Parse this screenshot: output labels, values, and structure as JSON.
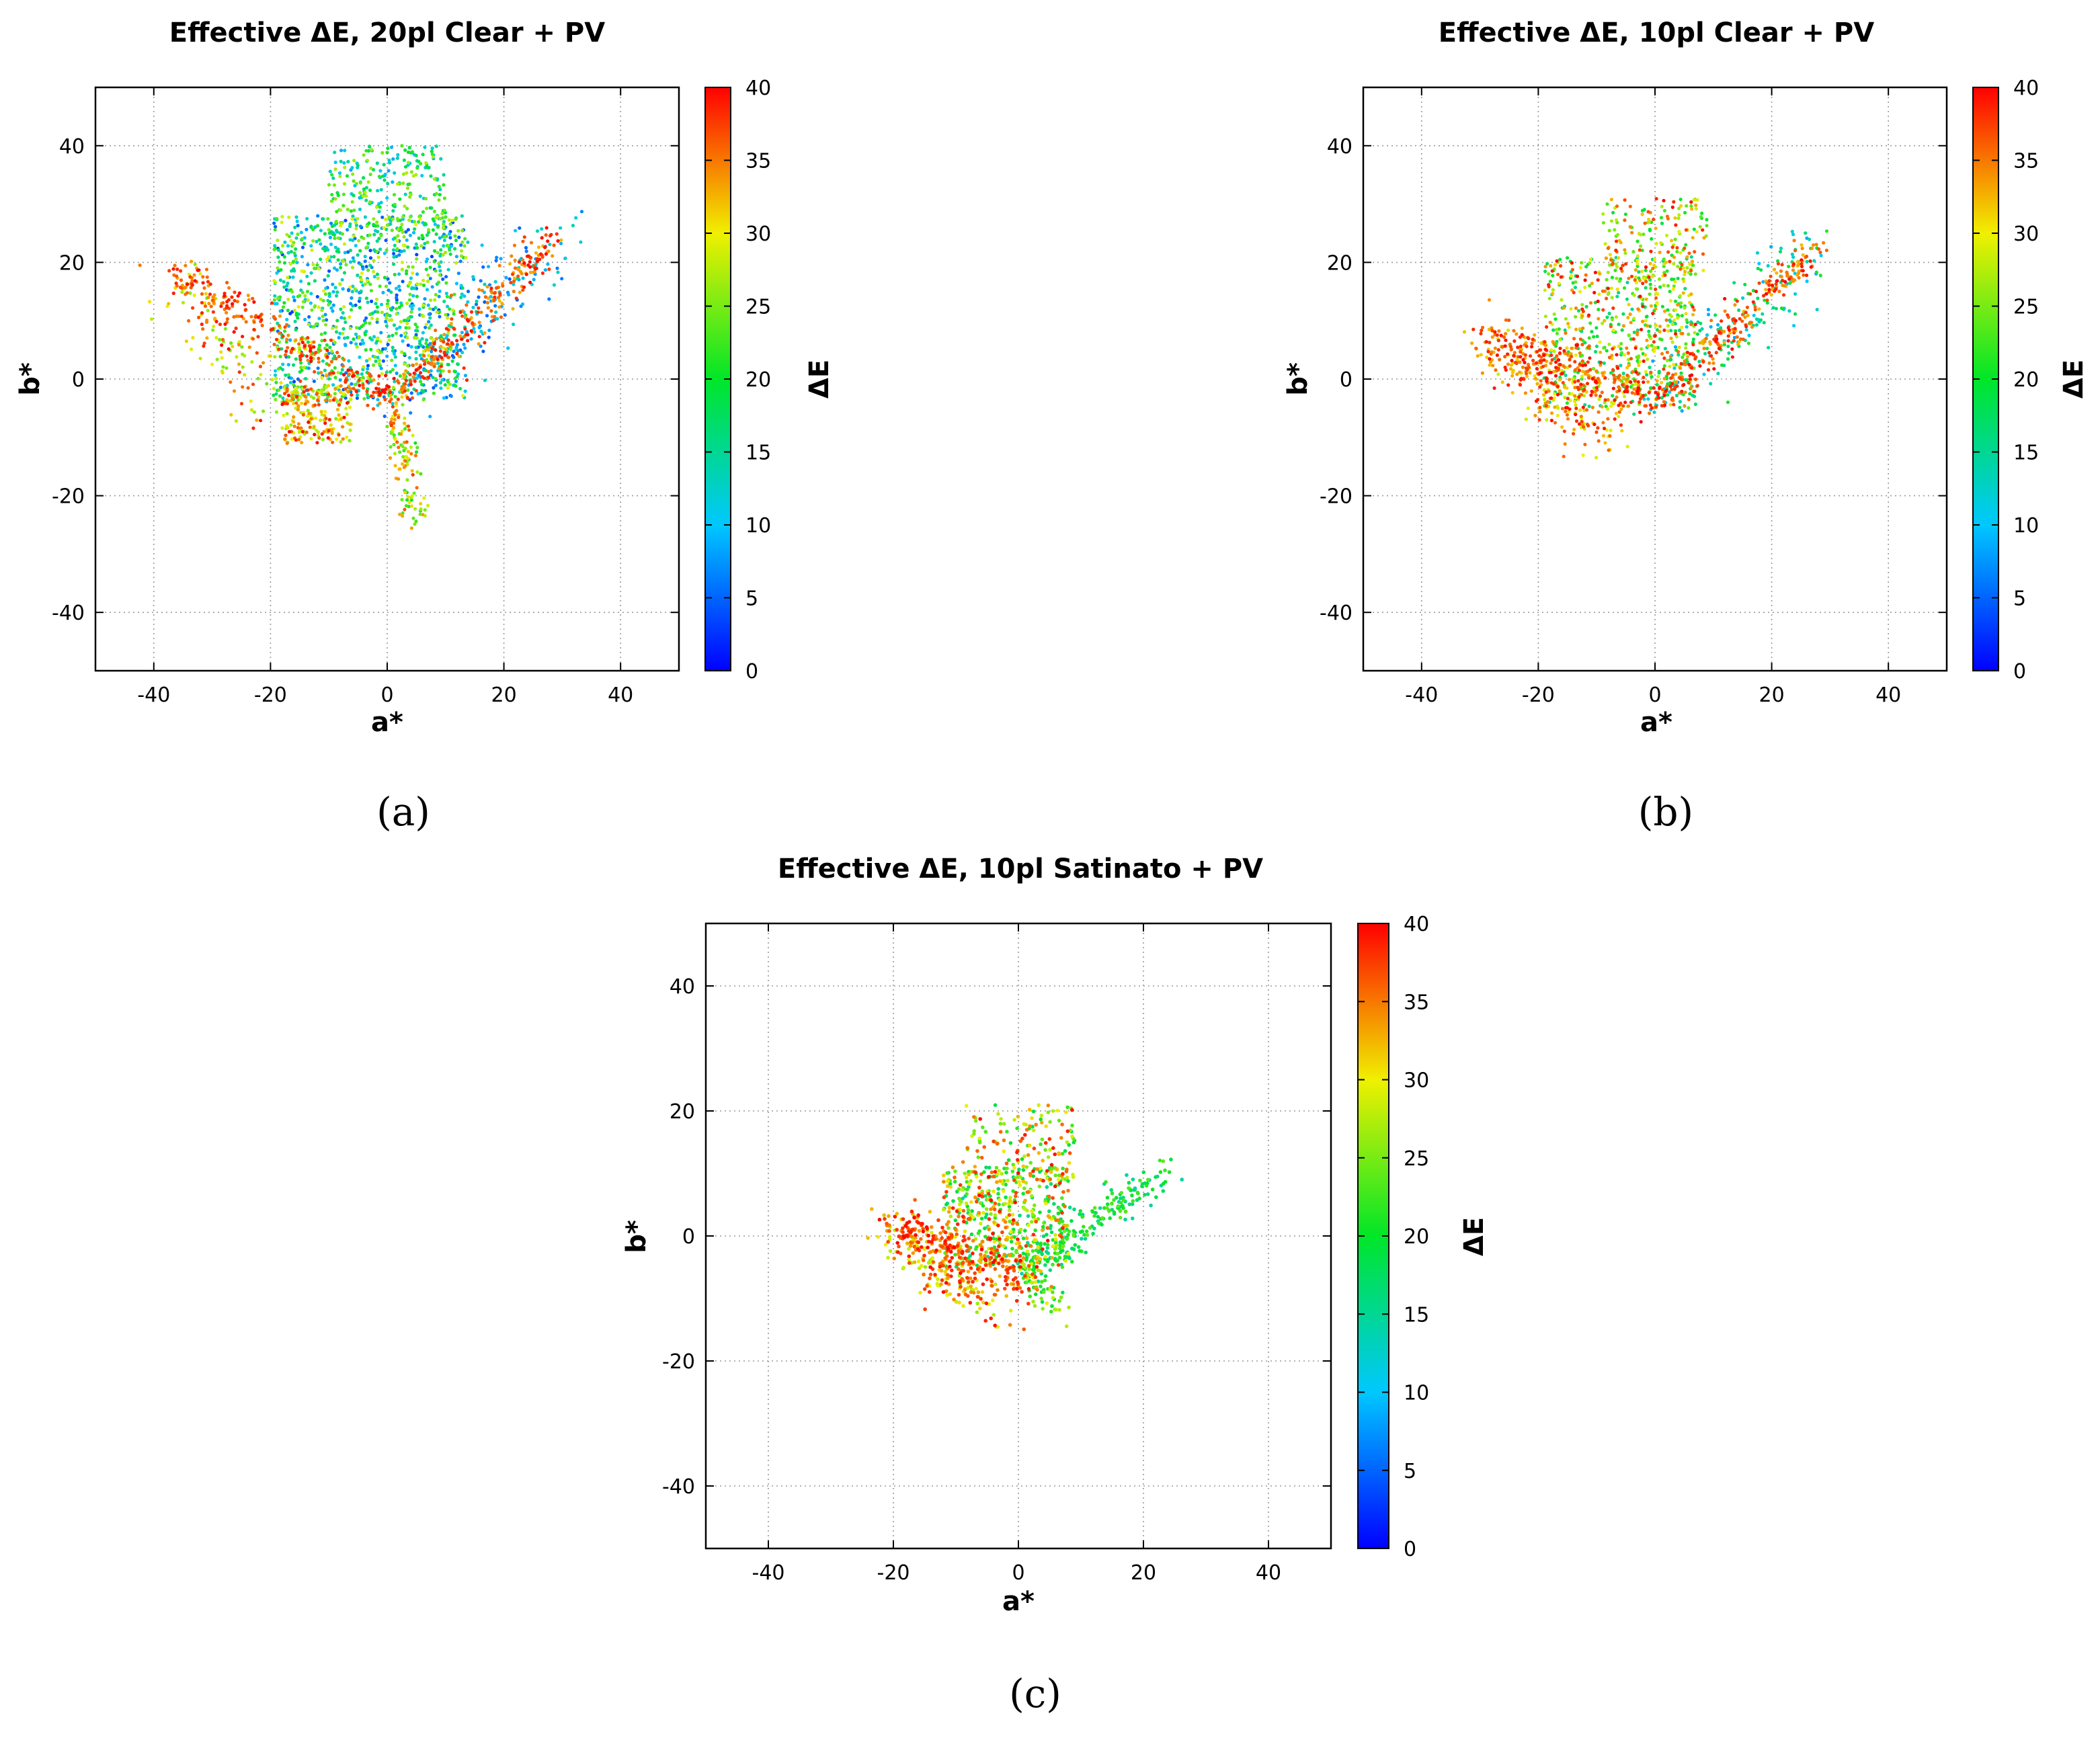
{
  "chart_data": [
    {
      "panel": "a",
      "type": "scatter",
      "title": "Effective ΔE, 20pl Clear + PV",
      "caption": "(a)",
      "xlabel": "a*",
      "ylabel": "b*",
      "colorbar_label": "ΔE",
      "xlim": [
        -50,
        50
      ],
      "ylim": [
        -50,
        50
      ],
      "xticks": [
        -40,
        -20,
        0,
        20,
        40
      ],
      "yticks": [
        -40,
        -20,
        0,
        20,
        40
      ],
      "clim": [
        0,
        40
      ],
      "cticks": [
        0,
        5,
        10,
        15,
        20,
        25,
        30,
        35,
        40
      ],
      "grid": true,
      "colormap": "rainbow (blue → cyan → green → yellow → red)",
      "point_groups": [
        {
          "from": [
            -36,
            18
          ],
          "to": [
            0,
            -3
          ],
          "count": 230,
          "spread": 1.4,
          "dE": [
            33,
            40
          ]
        },
        {
          "from": [
            -36,
            18
          ],
          "to": [
            -20,
            -5
          ],
          "count": 120,
          "spread": 3.0,
          "dE": [
            24,
            40
          ]
        },
        {
          "from": [
            2,
            -3
          ],
          "to": [
            29,
            25
          ],
          "count": 240,
          "spread": 1.5,
          "dE": [
            32,
            40
          ]
        },
        {
          "from": [
            2,
            -3
          ],
          "to": [
            29,
            25
          ],
          "count": 160,
          "spread": 3.5,
          "dE": [
            4,
            15
          ]
        },
        {
          "from": [
            1,
            -3
          ],
          "to": [
            5,
            -24
          ],
          "count": 120,
          "spread": 1.2,
          "dE": [
            20,
            38
          ]
        },
        {
          "cloud_center": [
            -3,
            12
          ],
          "cloud_size": [
            33,
            32
          ],
          "count": 1100,
          "dE": [
            3,
            30
          ]
        },
        {
          "cloud_center": [
            0,
            32
          ],
          "cloud_size": [
            20,
            16
          ],
          "count": 250,
          "dE": [
            8,
            28
          ]
        },
        {
          "cloud_center": [
            -12,
            -6
          ],
          "cloud_size": [
            12,
            10
          ],
          "count": 200,
          "dE": [
            25,
            40
          ]
        }
      ]
    },
    {
      "panel": "b",
      "type": "scatter",
      "title": "Effective ΔE, 10pl Clear + PV",
      "caption": "(b)",
      "xlabel": "a*",
      "ylabel": "b*",
      "colorbar_label": "ΔE",
      "xlim": [
        -50,
        50
      ],
      "ylim": [
        -50,
        50
      ],
      "xticks": [
        -40,
        -20,
        0,
        20,
        40
      ],
      "yticks": [
        -40,
        -20,
        0,
        20,
        40
      ],
      "clim": [
        0,
        40
      ],
      "cticks": [
        0,
        5,
        10,
        15,
        20,
        25,
        30,
        35,
        40
      ],
      "grid": true,
      "colormap": "rainbow (blue → cyan → green → yellow → red)",
      "point_groups": [
        {
          "from": [
            -28,
            8
          ],
          "to": [
            0,
            -4
          ],
          "count": 220,
          "spread": 2.0,
          "dE": [
            32,
            40
          ]
        },
        {
          "from": [
            -28,
            6
          ],
          "to": [
            -8,
            -10
          ],
          "count": 220,
          "spread": 2.5,
          "dE": [
            28,
            40
          ]
        },
        {
          "from": [
            0,
            -4
          ],
          "to": [
            27,
            22
          ],
          "count": 230,
          "spread": 1.4,
          "dE": [
            32,
            40
          ]
        },
        {
          "from": [
            0,
            -4
          ],
          "to": [
            27,
            22
          ],
          "count": 160,
          "spread": 3.0,
          "dE": [
            8,
            22
          ]
        },
        {
          "cloud_center": [
            -6,
            8
          ],
          "cloud_size": [
            26,
            26
          ],
          "count": 650,
          "dE": [
            14,
            40
          ]
        },
        {
          "cloud_center": [
            0,
            24
          ],
          "cloud_size": [
            18,
            14
          ],
          "count": 160,
          "dE": [
            18,
            40
          ]
        }
      ]
    },
    {
      "panel": "c",
      "type": "scatter",
      "title": "Effective ΔE, 10pl Satinato + PV",
      "caption": "(c)",
      "xlabel": "a*",
      "ylabel": "b*",
      "colorbar_label": "ΔE",
      "xlim": [
        -50,
        50
      ],
      "ylim": [
        -50,
        50
      ],
      "xticks": [
        -40,
        -20,
        0,
        20,
        40
      ],
      "yticks": [
        -40,
        -20,
        0,
        20,
        40
      ],
      "clim": [
        0,
        40
      ],
      "cticks": [
        0,
        5,
        10,
        15,
        20,
        25,
        30,
        35,
        40
      ],
      "grid": true,
      "colormap": "rainbow (blue → cyan → green → yellow → red)",
      "point_groups": [
        {
          "from": [
            -20,
            2
          ],
          "to": [
            2,
            -7
          ],
          "count": 220,
          "spread": 1.8,
          "dE": [
            32,
            40
          ]
        },
        {
          "from": [
            -20,
            1
          ],
          "to": [
            -5,
            -11
          ],
          "count": 200,
          "spread": 2.0,
          "dE": [
            26,
            40
          ]
        },
        {
          "from": [
            1,
            -5
          ],
          "to": [
            23,
            10
          ],
          "count": 200,
          "spread": 1.6,
          "dE": [
            14,
            24
          ]
        },
        {
          "from": [
            1,
            -5
          ],
          "to": [
            6,
            -12
          ],
          "count": 60,
          "spread": 1.2,
          "dE": [
            18,
            30
          ]
        },
        {
          "cloud_center": [
            -2,
            3
          ],
          "cloud_size": [
            20,
            16
          ],
          "count": 500,
          "dE": [
            14,
            40
          ]
        },
        {
          "cloud_center": [
            0,
            15
          ],
          "cloud_size": [
            18,
            12
          ],
          "count": 140,
          "dE": [
            18,
            40
          ]
        }
      ]
    }
  ]
}
